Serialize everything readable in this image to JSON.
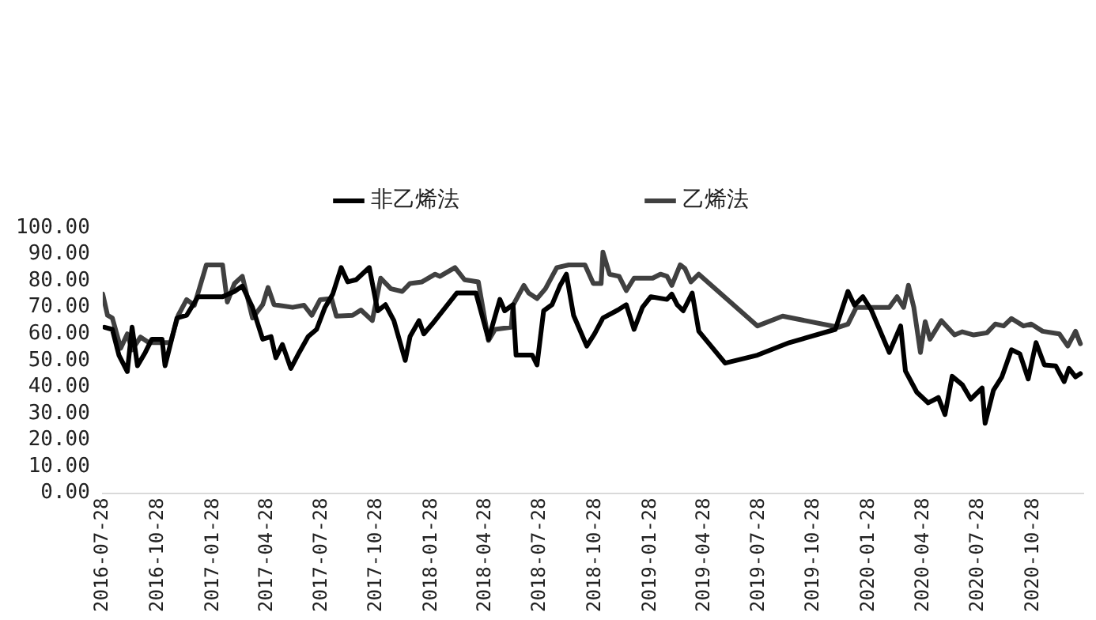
{
  "chart_data": {
    "type": "line",
    "legend": "top",
    "grid": false,
    "marker": "none",
    "line_style": "solid",
    "xlim": [
      "2016-07-28",
      "2021-01-20"
    ],
    "xticks": [
      "2016-07-28",
      "2016-10-28",
      "2017-01-28",
      "2017-04-28",
      "2017-07-28",
      "2017-10-28",
      "2018-01-28",
      "2018-04-28",
      "2018-07-28",
      "2018-10-28",
      "2019-01-28",
      "2019-04-28",
      "2019-07-28",
      "2019-10-28",
      "2020-01-28",
      "2020-04-28",
      "2020-07-28",
      "2020-10-28"
    ],
    "ylim": [
      0,
      100
    ],
    "yticks": [
      {
        "value": 0,
        "label": "0.00"
      },
      {
        "value": 10,
        "label": "10.00"
      },
      {
        "value": 20,
        "label": "20.00"
      },
      {
        "value": 30,
        "label": "30.00"
      },
      {
        "value": 40,
        "label": "40.00"
      },
      {
        "value": 50,
        "label": "50.00"
      },
      {
        "value": 60,
        "label": "60.00"
      },
      {
        "value": 70,
        "label": "70.00"
      },
      {
        "value": 80,
        "label": "80.00"
      },
      {
        "value": 90,
        "label": "90.00"
      },
      {
        "value": 100,
        "label": "100.00"
      }
    ],
    "series": [
      {
        "name": "非乙烯法",
        "color": "#000000",
        "x": [
          "2016-07-31",
          "2016-08-13",
          "2016-08-24",
          "2016-09-07",
          "2016-09-15",
          "2016-09-24",
          "2016-10-07",
          "2016-10-18",
          "2016-11-04",
          "2016-11-09",
          "2016-11-29",
          "2016-12-15",
          "2017-01-03",
          "2017-02-13",
          "2017-03-05",
          "2017-03-18",
          "2017-04-04",
          "2017-04-21",
          "2017-05-05",
          "2017-05-13",
          "2017-05-24",
          "2017-06-07",
          "2017-06-21",
          "2017-07-06",
          "2017-07-20",
          "2017-08-03",
          "2017-08-16",
          "2017-08-30",
          "2017-09-10",
          "2017-09-24",
          "2017-10-16",
          "2017-10-30",
          "2017-11-12",
          "2017-11-26",
          "2017-12-15",
          "2017-12-23",
          "2018-01-07",
          "2018-01-15",
          "2018-01-29",
          "2018-03-11",
          "2018-04-12",
          "2018-05-03",
          "2018-05-22",
          "2018-05-30",
          "2018-06-13",
          "2018-06-18",
          "2018-07-15",
          "2018-07-23",
          "2018-08-03",
          "2018-08-17",
          "2018-08-30",
          "2018-09-10",
          "2018-09-22",
          "2018-10-14",
          "2018-10-27",
          "2018-11-10",
          "2018-12-05",
          "2018-12-19",
          "2019-01-01",
          "2019-01-15",
          "2019-01-29",
          "2019-02-25",
          "2019-03-05",
          "2019-03-14",
          "2019-03-24",
          "2019-04-08",
          "2019-04-19",
          "2019-06-02",
          "2019-07-26",
          "2019-09-17",
          "2019-12-03",
          "2019-12-24",
          "2020-01-04",
          "2020-01-18",
          "2020-02-01",
          "2020-03-02",
          "2020-03-21",
          "2020-03-29",
          "2020-04-17",
          "2020-05-06",
          "2020-05-23",
          "2020-06-03",
          "2020-06-15",
          "2020-07-02",
          "2020-07-16",
          "2020-08-04",
          "2020-08-09",
          "2020-08-23",
          "2020-09-06",
          "2020-09-22",
          "2020-10-06",
          "2020-10-20",
          "2020-11-02",
          "2020-11-16",
          "2020-12-05",
          "2020-12-19",
          "2020-12-27",
          "2021-01-07",
          "2021-01-15"
        ],
        "values": [
          62.5,
          61.7,
          52,
          45.8,
          62.5,
          48,
          53,
          58,
          58,
          48,
          66,
          67,
          74,
          74,
          76,
          78,
          70,
          58,
          59,
          51,
          56,
          47,
          53,
          59,
          61.7,
          70,
          75,
          85,
          79.6,
          80.4,
          85,
          68.7,
          71,
          65,
          50,
          59,
          65,
          60,
          63.7,
          75.4,
          75.4,
          58,
          73,
          68.7,
          71,
          52,
          52,
          48.3,
          68.7,
          71,
          78,
          82.5,
          67,
          55.4,
          60,
          66,
          69,
          71,
          61.7,
          70,
          74,
          73,
          75,
          71,
          68.7,
          75.4,
          61,
          49,
          52,
          56.7,
          61.7,
          76,
          70.8,
          74,
          69,
          53,
          63,
          46,
          38,
          34,
          36,
          29.6,
          44,
          40.8,
          35.4,
          39.6,
          26.3,
          38.8,
          43.8,
          54,
          52.5,
          43,
          56.7,
          48.3,
          47.9,
          42,
          47,
          43.8,
          45
        ]
      },
      {
        "name": "乙烯法",
        "color": "#404040",
        "x": [
          "2016-07-28",
          "2016-08-05",
          "2016-08-13",
          "2016-08-27",
          "2016-09-07",
          "2016-09-15",
          "2016-09-29",
          "2016-10-13",
          "2016-11-18",
          "2016-12-01",
          "2016-12-15",
          "2016-12-28",
          "2017-01-17",
          "2017-02-13",
          "2017-02-21",
          "2017-03-05",
          "2017-03-18",
          "2017-04-04",
          "2017-04-21",
          "2017-04-30",
          "2017-05-10",
          "2017-06-10",
          "2017-06-29",
          "2017-07-12",
          "2017-07-26",
          "2017-08-14",
          "2017-08-22",
          "2017-09-18",
          "2017-10-02",
          "2017-10-21",
          "2017-11-04",
          "2017-11-21",
          "2017-12-10",
          "2017-12-23",
          "2018-01-12",
          "2018-02-03",
          "2018-02-11",
          "2018-03-08",
          "2018-03-24",
          "2018-04-16",
          "2018-05-03",
          "2018-05-14",
          "2018-06-10",
          "2018-06-13",
          "2018-07-01",
          "2018-07-09",
          "2018-07-23",
          "2018-08-06",
          "2018-08-25",
          "2018-09-14",
          "2018-10-11",
          "2018-10-25",
          "2018-11-07",
          "2018-11-10",
          "2018-11-21",
          "2018-12-07",
          "2018-12-19",
          "2019-01-01",
          "2019-02-01",
          "2019-02-14",
          "2019-02-25",
          "2019-03-05",
          "2019-03-19",
          "2019-03-27",
          "2019-04-06",
          "2019-04-19",
          "2019-07-26",
          "2019-09-06",
          "2019-12-08",
          "2019-12-24",
          "2020-01-07",
          "2020-03-02",
          "2020-03-15",
          "2020-03-26",
          "2020-04-03",
          "2020-04-12",
          "2020-04-23",
          "2020-05-01",
          "2020-05-09",
          "2020-05-28",
          "2020-06-19",
          "2020-07-02",
          "2020-07-21",
          "2020-08-12",
          "2020-08-26",
          "2020-09-09",
          "2020-09-22",
          "2020-10-12",
          "2020-10-25",
          "2020-11-13",
          "2020-12-11",
          "2020-12-25",
          "2021-01-07",
          "2021-01-15"
        ],
        "values": [
          75,
          67,
          66,
          54.6,
          60,
          54,
          58.8,
          56.7,
          56.7,
          67,
          72.9,
          70.8,
          86,
          86,
          72,
          79,
          81.7,
          66,
          71,
          77.5,
          71,
          70,
          70.8,
          67,
          72.9,
          73.3,
          66.7,
          67,
          69,
          65,
          81,
          77,
          76,
          79,
          79.6,
          82.5,
          81.7,
          85,
          80.4,
          79.6,
          57.5,
          61.7,
          62.5,
          70.8,
          78.3,
          75.4,
          73.3,
          77,
          85,
          86,
          86,
          79,
          79,
          90.8,
          82.5,
          81.7,
          76.3,
          81,
          81,
          82.5,
          81.7,
          78.3,
          86,
          84.6,
          79.6,
          82.5,
          63,
          66.7,
          62.5,
          63.7,
          70,
          70,
          74,
          70,
          78.3,
          70,
          53,
          64.6,
          58,
          65,
          59.6,
          60.8,
          59.6,
          60.4,
          63.7,
          63,
          65.8,
          63,
          63.7,
          61,
          60,
          55.4,
          61,
          56.3
        ]
      }
    ]
  }
}
